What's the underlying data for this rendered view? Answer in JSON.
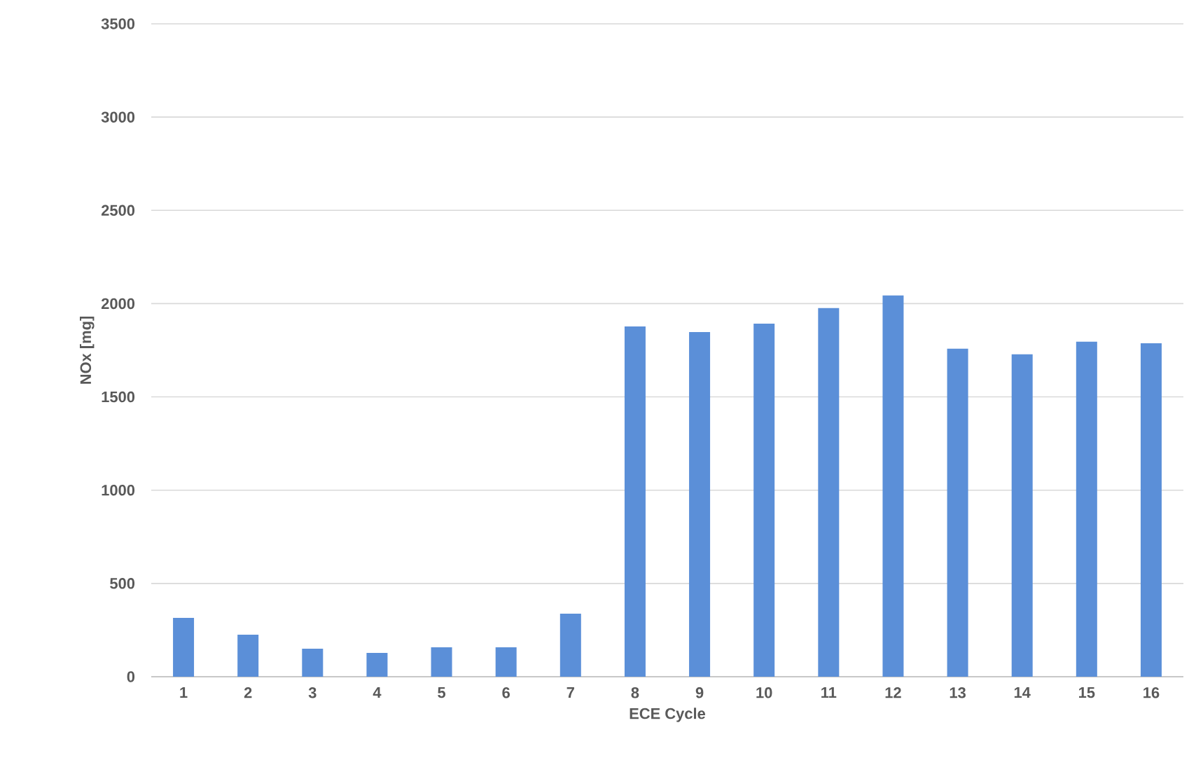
{
  "chart_data": {
    "type": "bar",
    "xlabel": "ECE Cycle",
    "ylabel": "NOx [mg]",
    "categories": [
      "1",
      "2",
      "3",
      "4",
      "5",
      "6",
      "7",
      "8",
      "9",
      "10",
      "11",
      "12",
      "13",
      "14",
      "15",
      "16"
    ],
    "values": [
      315,
      225,
      150,
      128,
      158,
      158,
      338,
      1878,
      1848,
      1893,
      1976,
      2044,
      1758,
      1728,
      1796,
      1788
    ],
    "color": "#5b8fd8",
    "ylim": [
      0,
      3500
    ],
    "yticks": [
      0,
      500,
      1000,
      1500,
      2000,
      2500,
      3000,
      3500
    ],
    "grid": "y"
  }
}
